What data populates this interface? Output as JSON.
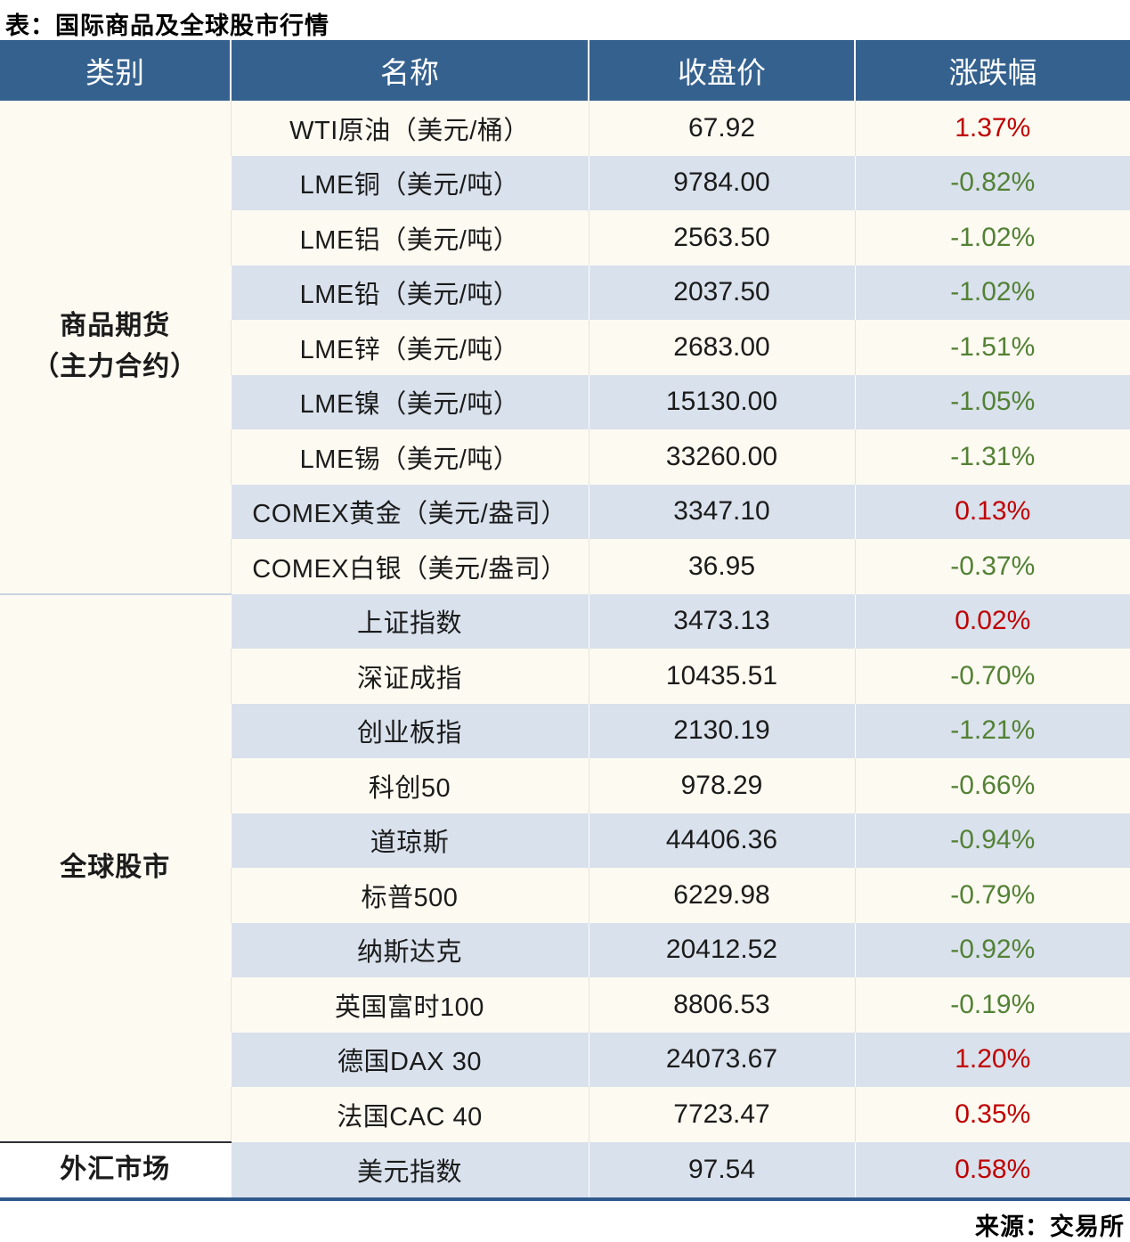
{
  "page": {
    "title": "表：国际商品及全球股市行情",
    "source": "来源：交易所"
  },
  "colors": {
    "header_bg": "#35618e",
    "row_base": "#fdfaf1",
    "row_alt": "#d9e1ec",
    "table_border": "#305a8c",
    "up": "#c00000",
    "down": "#538135"
  },
  "chart_data": {
    "type": "table",
    "title": "表：国际商品及全球股市行情",
    "headers": [
      "类别",
      "名称",
      "收盘价",
      "涨跌幅"
    ],
    "sections": [
      {
        "category_lines": [
          "商品期货",
          "（主力合约）"
        ],
        "rows": [
          {
            "name": "WTI原油（美元/桶）",
            "close": "67.92",
            "change": "1.37%",
            "dir": "up"
          },
          {
            "name": "LME铜（美元/吨）",
            "close": "9784.00",
            "change": "-0.82%",
            "dir": "down"
          },
          {
            "name": "LME铝（美元/吨）",
            "close": "2563.50",
            "change": "-1.02%",
            "dir": "down"
          },
          {
            "name": "LME铅（美元/吨）",
            "close": "2037.50",
            "change": "-1.02%",
            "dir": "down"
          },
          {
            "name": "LME锌（美元/吨）",
            "close": "2683.00",
            "change": "-1.51%",
            "dir": "down"
          },
          {
            "name": "LME镍（美元/吨）",
            "close": "15130.00",
            "change": "-1.05%",
            "dir": "down"
          },
          {
            "name": "LME锡（美元/吨）",
            "close": "33260.00",
            "change": "-1.31%",
            "dir": "down"
          },
          {
            "name": "COMEX黄金（美元/盎司）",
            "close": "3347.10",
            "change": "0.13%",
            "dir": "up"
          },
          {
            "name": "COMEX白银（美元/盎司）",
            "close": "36.95",
            "change": "-0.37%",
            "dir": "down"
          }
        ]
      },
      {
        "category_lines": [
          "全球股市"
        ],
        "rows": [
          {
            "name": "上证指数",
            "close": "3473.13",
            "change": "0.02%",
            "dir": "up"
          },
          {
            "name": "深证成指",
            "close": "10435.51",
            "change": "-0.70%",
            "dir": "down"
          },
          {
            "name": "创业板指",
            "close": "2130.19",
            "change": "-1.21%",
            "dir": "down"
          },
          {
            "name": "科创50",
            "close": "978.29",
            "change": "-0.66%",
            "dir": "down"
          },
          {
            "name": "道琼斯",
            "close": "44406.36",
            "change": "-0.94%",
            "dir": "down"
          },
          {
            "name": "标普500",
            "close": "6229.98",
            "change": "-0.79%",
            "dir": "down"
          },
          {
            "name": "纳斯达克",
            "close": "20412.52",
            "change": "-0.92%",
            "dir": "down"
          },
          {
            "name": "英国富时100",
            "close": "8806.53",
            "change": "-0.19%",
            "dir": "down"
          },
          {
            "name": "德国DAX 30",
            "close": "24073.67",
            "change": "1.20%",
            "dir": "up"
          },
          {
            "name": "法国CAC 40",
            "close": "7723.47",
            "change": "0.35%",
            "dir": "up"
          }
        ]
      },
      {
        "category_lines": [
          "外汇市场"
        ],
        "rows": [
          {
            "name": "美元指数",
            "close": "97.54",
            "change": "0.58%",
            "dir": "up"
          }
        ]
      }
    ]
  }
}
